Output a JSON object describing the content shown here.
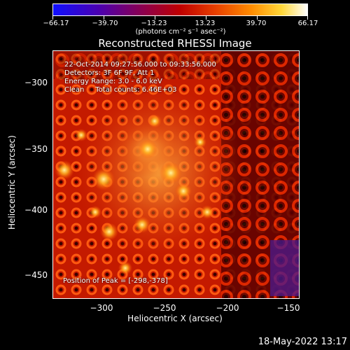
{
  "colorbar": {
    "ticks": [
      "−66.17",
      "−39.70",
      "−13.23",
      "13.23",
      "39.70",
      "66.17"
    ],
    "unit": "(photons cm⁻² s⁻¹ asec⁻²)"
  },
  "title": "Reconstructed RHESSI Image",
  "info": {
    "line1": "22-Oct-2014 09:27:56.000 to 09:33:56.000",
    "line2": "Detectors: 3F 6F 9F, Att 1",
    "line3": "Energy Range: 3.0 - 6.0 keV",
    "line4": "Clean     Total counts: 6.46E+03",
    "peak": "Position of Peak = [-298,-378]"
  },
  "axes": {
    "xlabel": "Heliocentric X (arcsec)",
    "ylabel": "Heliocentric Y (arcsec)",
    "xticks": [
      "−300",
      "−250",
      "−200",
      "−150"
    ],
    "yticks": [
      "−300",
      "−350",
      "−400",
      "−450"
    ]
  },
  "footer": {
    "timestamp": "18-May-2022 13:17"
  },
  "colors": {
    "background": "#000000",
    "accent": "#ffffff"
  }
}
